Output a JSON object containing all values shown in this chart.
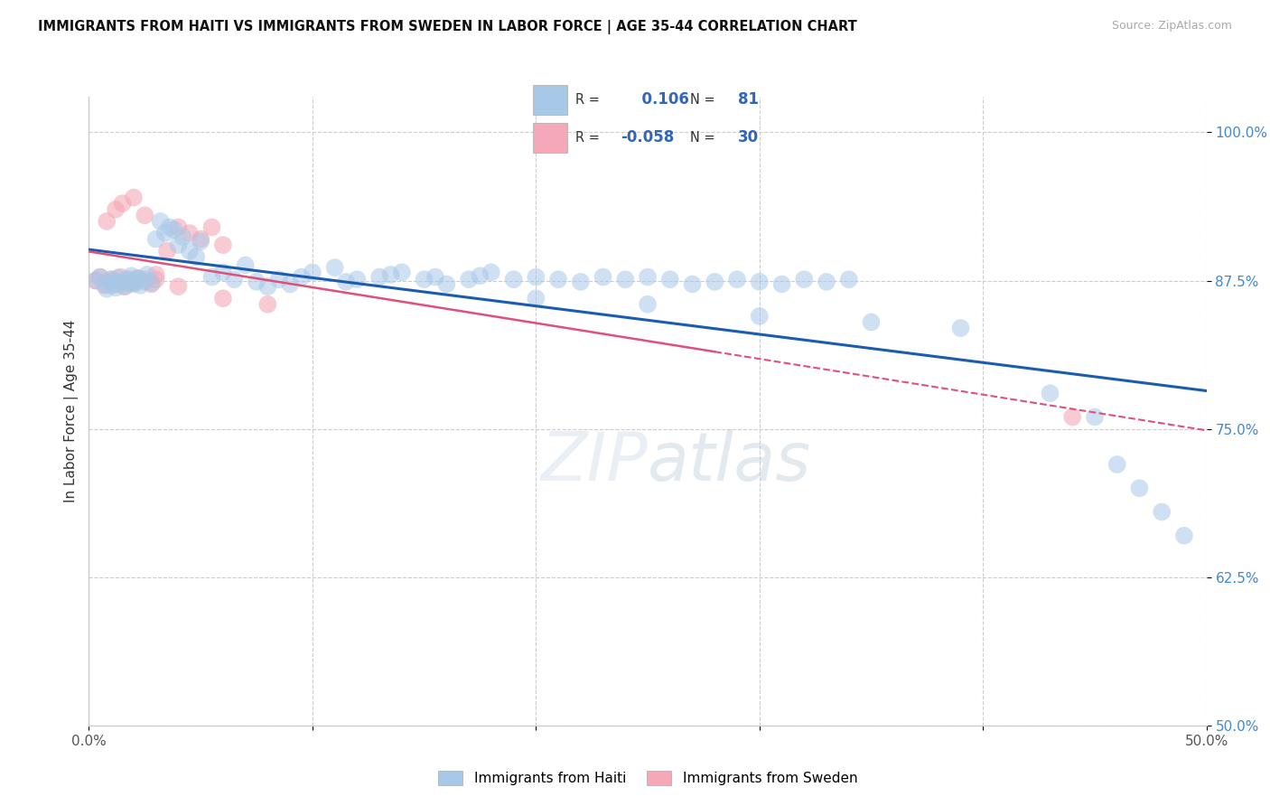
{
  "title": "IMMIGRANTS FROM HAITI VS IMMIGRANTS FROM SWEDEN IN LABOR FORCE | AGE 35-44 CORRELATION CHART",
  "source": "Source: ZipAtlas.com",
  "ylabel": "In Labor Force | Age 35-44",
  "ytick_vals": [
    0.5,
    0.625,
    0.75,
    0.875,
    1.0
  ],
  "ytick_labels": [
    "50.0%",
    "62.5%",
    "75.0%",
    "87.5%",
    "100.0%"
  ],
  "xlim": [
    0.0,
    0.5
  ],
  "ylim": [
    0.5,
    1.03
  ],
  "haiti_R": 0.106,
  "haiti_N": 81,
  "sweden_R": -0.058,
  "sweden_N": 30,
  "haiti_color": "#a8c8e8",
  "sweden_color": "#f4a8b8",
  "haiti_line_color": "#1a5cb0",
  "sweden_line_color": "#e0507a",
  "haiti_scatter_x": [
    0.003,
    0.005,
    0.007,
    0.008,
    0.01,
    0.01,
    0.011,
    0.012,
    0.013,
    0.015,
    0.016,
    0.017,
    0.018,
    0.019,
    0.02,
    0.02,
    0.021,
    0.022,
    0.023,
    0.025,
    0.026,
    0.028,
    0.03,
    0.032,
    0.034,
    0.036,
    0.038,
    0.04,
    0.042,
    0.045,
    0.048,
    0.05,
    0.055,
    0.06,
    0.065,
    0.07,
    0.075,
    0.08,
    0.085,
    0.09,
    0.095,
    0.1,
    0.11,
    0.115,
    0.12,
    0.13,
    0.135,
    0.14,
    0.15,
    0.155,
    0.16,
    0.17,
    0.175,
    0.18,
    0.19,
    0.2,
    0.21,
    0.22,
    0.23,
    0.24,
    0.25,
    0.26,
    0.27,
    0.28,
    0.29,
    0.3,
    0.31,
    0.32,
    0.33,
    0.34,
    0.2,
    0.25,
    0.3,
    0.35,
    0.39,
    0.43,
    0.45,
    0.46,
    0.47,
    0.48,
    0.49
  ],
  "haiti_scatter_y": [
    0.875,
    0.878,
    0.872,
    0.868,
    0.871,
    0.876,
    0.873,
    0.869,
    0.877,
    0.874,
    0.87,
    0.876,
    0.873,
    0.879,
    0.875,
    0.872,
    0.874,
    0.877,
    0.871,
    0.876,
    0.88,
    0.873,
    0.91,
    0.925,
    0.915,
    0.92,
    0.918,
    0.905,
    0.912,
    0.9,
    0.895,
    0.908,
    0.878,
    0.882,
    0.876,
    0.888,
    0.874,
    0.87,
    0.876,
    0.872,
    0.878,
    0.882,
    0.886,
    0.874,
    0.876,
    0.878,
    0.88,
    0.882,
    0.876,
    0.878,
    0.872,
    0.876,
    0.879,
    0.882,
    0.876,
    0.878,
    0.876,
    0.874,
    0.878,
    0.876,
    0.878,
    0.876,
    0.872,
    0.874,
    0.876,
    0.874,
    0.872,
    0.876,
    0.874,
    0.876,
    0.86,
    0.855,
    0.845,
    0.84,
    0.835,
    0.78,
    0.76,
    0.72,
    0.7,
    0.68,
    0.66
  ],
  "sweden_scatter_x": [
    0.003,
    0.005,
    0.007,
    0.009,
    0.01,
    0.012,
    0.014,
    0.016,
    0.018,
    0.02,
    0.022,
    0.025,
    0.028,
    0.03,
    0.035,
    0.04,
    0.045,
    0.05,
    0.055,
    0.06,
    0.008,
    0.012,
    0.015,
    0.02,
    0.025,
    0.03,
    0.04,
    0.06,
    0.08,
    0.44
  ],
  "sweden_scatter_y": [
    0.875,
    0.878,
    0.871,
    0.874,
    0.876,
    0.872,
    0.878,
    0.87,
    0.876,
    0.873,
    0.877,
    0.874,
    0.872,
    0.876,
    0.9,
    0.92,
    0.915,
    0.91,
    0.92,
    0.905,
    0.925,
    0.935,
    0.94,
    0.945,
    0.93,
    0.88,
    0.87,
    0.86,
    0.855,
    0.76
  ],
  "watermark_zip": "ZIP",
  "watermark_atlas": "atlas",
  "background_color": "#ffffff",
  "grid_color": "#cccccc"
}
